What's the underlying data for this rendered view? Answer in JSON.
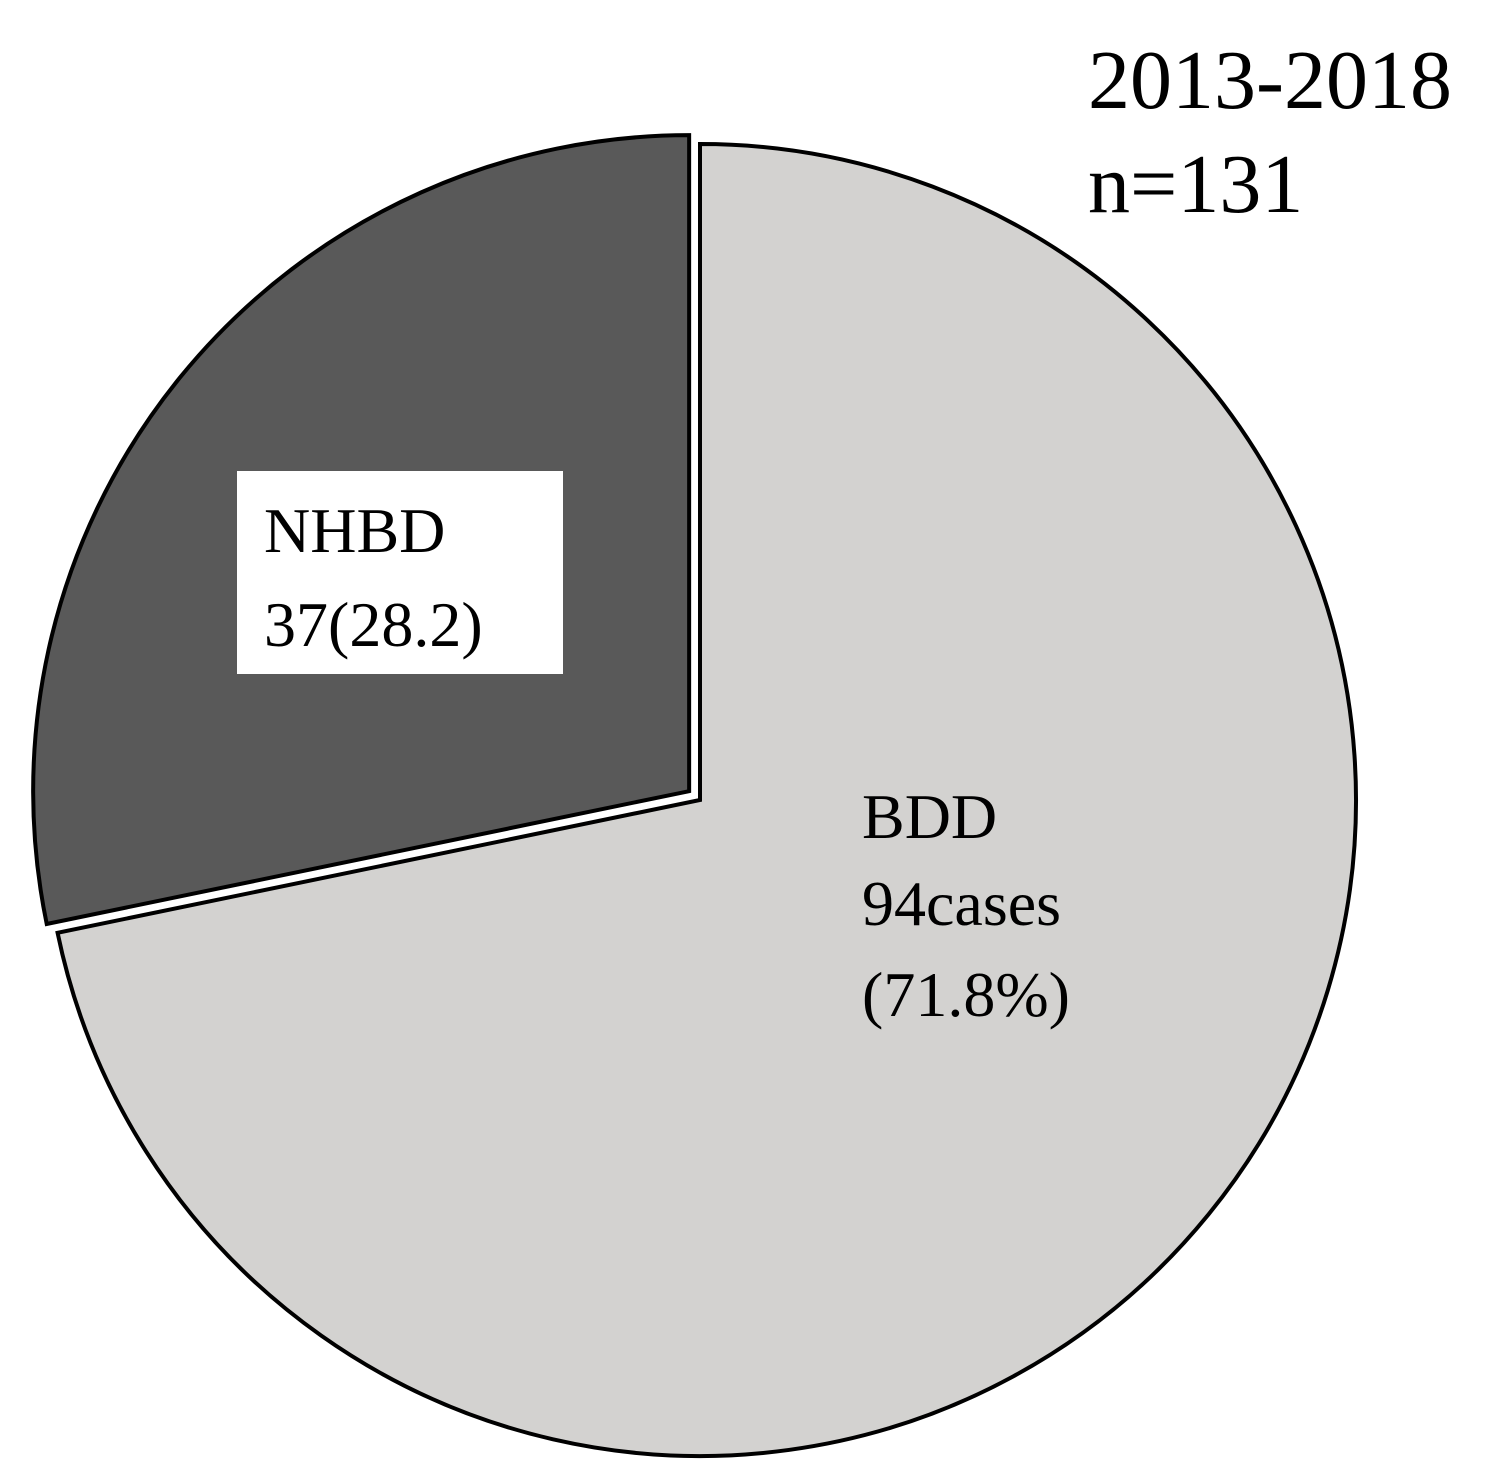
{
  "chart_data": {
    "type": "pie",
    "title": "",
    "annotations": [
      "2013-2018",
      "n=131"
    ],
    "total": 131,
    "slices": [
      {
        "name": "BDD",
        "value": 94,
        "percent": 71.8,
        "label_lines": [
          "BDD",
          "94cases",
          "(71.8%)"
        ],
        "color": "#d3d2d0",
        "exploded": false
      },
      {
        "name": "NHBD",
        "value": 37,
        "percent": 28.2,
        "label_lines": [
          "NHBD",
          "37(28.2)"
        ],
        "color": "#595959",
        "label_box_color": "#ffffff",
        "exploded": true
      }
    ],
    "start_angle": "12 o'clock",
    "direction": "clockwise",
    "edge_color": "#000000",
    "legend": "none"
  }
}
